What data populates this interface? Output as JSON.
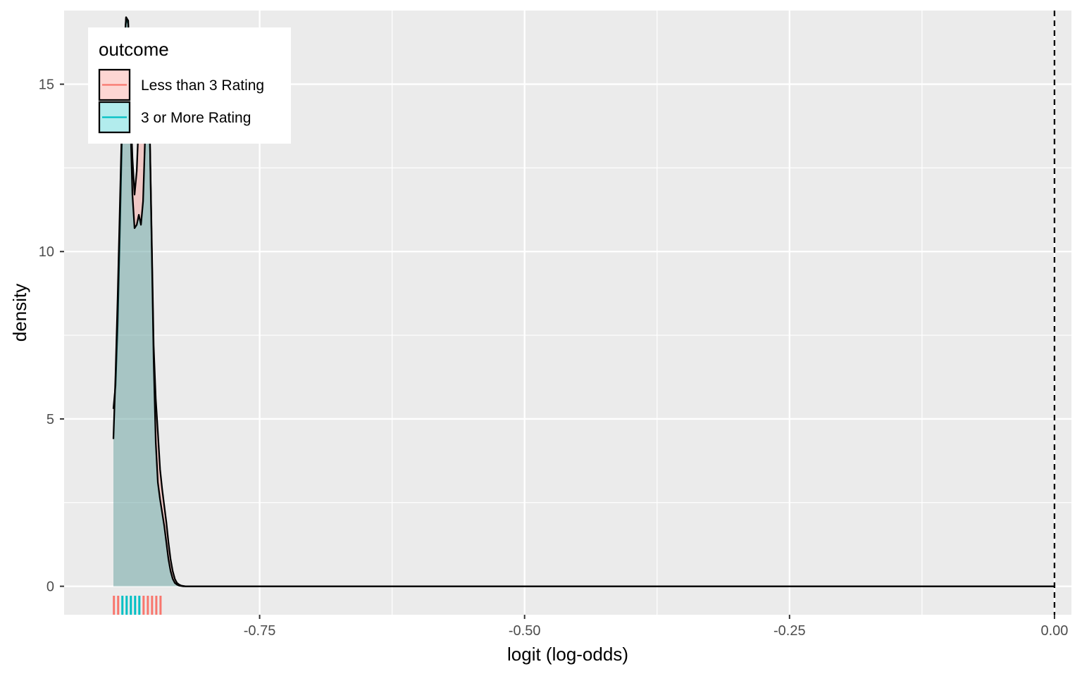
{
  "chart_data": {
    "type": "area",
    "xlabel": "logit (log-odds)",
    "ylabel": "density",
    "xlim": [
      -0.9345,
      0.016
    ],
    "ylim": [
      -0.85,
      17.2
    ],
    "x_ticks": [
      -0.75,
      -0.5,
      -0.25,
      0.0
    ],
    "x_tick_labels": [
      "-0.75",
      "-0.50",
      "-0.25",
      "0.00"
    ],
    "y_ticks": [
      0,
      5,
      10,
      15
    ],
    "y_tick_labels": [
      "0",
      "5",
      "10",
      "15"
    ],
    "grid": true,
    "reference_line": {
      "x": 0.0,
      "style": "dashed"
    },
    "legend": {
      "title": "outcome",
      "position": "top-left",
      "entries": [
        "Less than 3 Rating",
        "3 or More Rating"
      ]
    },
    "series": [
      {
        "name": "Less than 3 Rating",
        "color": "#F8766D",
        "fill": "#F8766D",
        "fill_opacity": 0.3,
        "density": {
          "x": [
            -0.888,
            -0.886,
            -0.884,
            -0.882,
            -0.88,
            -0.878,
            -0.876,
            -0.874,
            -0.872,
            -0.87,
            -0.868,
            -0.866,
            -0.864,
            -0.862,
            -0.86,
            -0.858,
            -0.856,
            -0.854,
            -0.852,
            -0.85,
            -0.848,
            -0.846,
            -0.844,
            -0.842,
            -0.84,
            -0.838,
            -0.836,
            -0.834,
            -0.832,
            -0.83,
            -0.828,
            -0.826,
            -0.824,
            -0.822,
            -0.82,
            -0.815,
            -0.81,
            -0.8,
            -0.75,
            -0.7,
            -0.6,
            -0.5,
            -0.4,
            -0.3,
            -0.2,
            -0.1,
            0.0
          ],
          "y": [
            5.3,
            6.0,
            7.8,
            10.5,
            13.3,
            15.8,
            17.0,
            16.8,
            14.5,
            12.8,
            11.7,
            12.4,
            14.0,
            15.6,
            16.3,
            16.5,
            16.1,
            14.2,
            10.7,
            7.2,
            5.6,
            4.6,
            3.5,
            2.9,
            2.4,
            1.9,
            1.3,
            0.8,
            0.45,
            0.22,
            0.1,
            0.05,
            0.02,
            0.01,
            0.0,
            0.0,
            0.0,
            0.0,
            0.0,
            0.0,
            0.0,
            0.0,
            0.0,
            0.0,
            0.0,
            0.0,
            0.0
          ]
        },
        "rug": [
          -0.8875,
          -0.8835,
          -0.8595,
          -0.8555,
          -0.8515,
          -0.8475,
          -0.8435
        ]
      },
      {
        "name": "3 or More Rating",
        "color": "#00BFC4",
        "fill": "#00BFC4",
        "fill_opacity": 0.3,
        "density": {
          "x": [
            -0.888,
            -0.886,
            -0.884,
            -0.882,
            -0.88,
            -0.878,
            -0.876,
            -0.874,
            -0.872,
            -0.87,
            -0.868,
            -0.866,
            -0.864,
            -0.862,
            -0.86,
            -0.858,
            -0.856,
            -0.854,
            -0.852,
            -0.85,
            -0.848,
            -0.846,
            -0.844,
            -0.842,
            -0.84,
            -0.838,
            -0.836,
            -0.834,
            -0.832,
            -0.83,
            -0.828,
            -0.826,
            -0.824,
            -0.822,
            -0.82,
            -0.815,
            -0.81,
            -0.8,
            -0.75,
            -0.7,
            -0.6,
            -0.5,
            -0.4,
            -0.3,
            -0.2,
            -0.1,
            0.0
          ],
          "y": [
            4.4,
            6.3,
            8.6,
            11.2,
            13.8,
            16.0,
            17.0,
            16.9,
            14.0,
            11.7,
            10.7,
            10.8,
            11.1,
            10.8,
            11.5,
            13.5,
            15.8,
            14.2,
            10.5,
            6.8,
            4.3,
            3.1,
            2.6,
            2.2,
            1.8,
            1.3,
            0.8,
            0.45,
            0.22,
            0.1,
            0.05,
            0.02,
            0.01,
            0.0,
            0.0,
            0.0,
            0.0,
            0.0,
            0.0,
            0.0,
            0.0,
            0.0,
            0.0,
            0.0,
            0.0,
            0.0,
            0.0
          ]
        },
        "rug": [
          -0.8795,
          -0.8755,
          -0.8715,
          -0.8675,
          -0.8635
        ]
      }
    ]
  }
}
